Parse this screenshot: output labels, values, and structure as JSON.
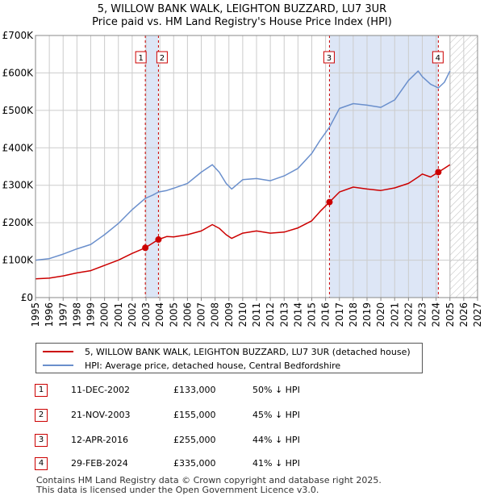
{
  "title_line1": "5, WILLOW BANK WALK, LEIGHTON BUZZARD, LU7 3UR",
  "title_line2": "Price paid vs. HM Land Registry's House Price Index (HPI)",
  "colors": {
    "property": "#cc0000",
    "hpi": "#6a8fcc",
    "shade": "#dde6f6"
  },
  "chart_data": {
    "type": "line",
    "title": "Price paid vs. HM Land Registry's House Price Index (HPI)",
    "xlim": [
      1995,
      2027
    ],
    "ylim": [
      0,
      700000
    ],
    "yticks": [
      0,
      100000,
      200000,
      300000,
      400000,
      500000,
      600000,
      700000
    ],
    "ytick_labels": [
      "£0",
      "£100K",
      "£200K",
      "£300K",
      "£400K",
      "£500K",
      "£600K",
      "£700K"
    ],
    "xticks": [
      "1995",
      "1996",
      "1997",
      "1998",
      "1999",
      "2000",
      "2001",
      "2002",
      "2003",
      "2004",
      "2005",
      "2006",
      "2007",
      "2008",
      "2009",
      "2010",
      "2011",
      "2012",
      "2013",
      "2014",
      "2015",
      "2016",
      "2017",
      "2018",
      "2019",
      "2020",
      "2021",
      "2022",
      "2023",
      "2024",
      "2025",
      "2026",
      "2027"
    ],
    "data_end": 2025.0,
    "series": [
      {
        "name": "5, WILLOW BANK WALK, LEIGHTON BUZZARD, LU7 3UR (detached house)",
        "x": [
          1995.0,
          1996.0,
          1997.0,
          1998.0,
          1999.0,
          2000.0,
          2001.0,
          2002.0,
          2002.95,
          2003.5,
          2003.9,
          2004.5,
          2005.0,
          2006.0,
          2007.0,
          2007.8,
          2008.3,
          2008.8,
          2009.2,
          2010.0,
          2011.0,
          2012.0,
          2013.0,
          2014.0,
          2015.0,
          2015.6,
          2016.28,
          2017.0,
          2018.0,
          2019.0,
          2020.0,
          2021.0,
          2022.0,
          2022.7,
          2023.0,
          2023.6,
          2024.16,
          2024.6,
          2025.0
        ],
        "y": [
          50000,
          52000,
          58000,
          66000,
          72000,
          86000,
          100000,
          118000,
          133000,
          146000,
          155000,
          163000,
          162000,
          168000,
          178000,
          195000,
          185000,
          168000,
          158000,
          172000,
          178000,
          172000,
          175000,
          186000,
          205000,
          230000,
          255000,
          282000,
          295000,
          290000,
          286000,
          293000,
          305000,
          322000,
          330000,
          322000,
          335000,
          345000,
          355000
        ]
      },
      {
        "name": "HPI: Average price, detached house, Central Bedfordshire",
        "x": [
          1995.0,
          1996.0,
          1997.0,
          1998.0,
          1999.0,
          2000.0,
          2001.0,
          2002.0,
          2002.95,
          2003.5,
          2003.9,
          2004.5,
          2005.0,
          2006.0,
          2007.0,
          2007.8,
          2008.3,
          2008.8,
          2009.2,
          2010.0,
          2011.0,
          2012.0,
          2013.0,
          2014.0,
          2015.0,
          2015.6,
          2016.28,
          2017.0,
          2018.0,
          2019.0,
          2020.0,
          2021.0,
          2022.0,
          2022.7,
          2023.0,
          2023.6,
          2024.16,
          2024.6,
          2025.0
        ],
        "y": [
          100000,
          104000,
          116000,
          130000,
          142000,
          168000,
          198000,
          235000,
          265000,
          274000,
          282000,
          286000,
          292000,
          305000,
          335000,
          355000,
          335000,
          305000,
          290000,
          315000,
          318000,
          312000,
          325000,
          345000,
          385000,
          420000,
          455000,
          505000,
          518000,
          514000,
          508000,
          528000,
          580000,
          605000,
          590000,
          570000,
          560000,
          575000,
          605000
        ]
      }
    ],
    "sales": [
      {
        "label": "1",
        "x": 2002.95,
        "price": 133000
      },
      {
        "label": "2",
        "x": 2003.9,
        "price": 155000
      },
      {
        "label": "3",
        "x": 2016.28,
        "price": 255000
      },
      {
        "label": "4",
        "x": 2024.16,
        "price": 335000
      }
    ]
  },
  "legend": {
    "property_label": "5, WILLOW BANK WALK, LEIGHTON BUZZARD, LU7 3UR (detached house)",
    "hpi_label": "HPI: Average price, detached house, Central Bedfordshire"
  },
  "transactions": [
    {
      "num": "1",
      "date": "11-DEC-2002",
      "price": "£133,000",
      "hpi": "50% ↓ HPI"
    },
    {
      "num": "2",
      "date": "21-NOV-2003",
      "price": "£155,000",
      "hpi": "45% ↓ HPI"
    },
    {
      "num": "3",
      "date": "12-APR-2016",
      "price": "£255,000",
      "hpi": "44% ↓ HPI"
    },
    {
      "num": "4",
      "date": "29-FEB-2024",
      "price": "£335,000",
      "hpi": "41% ↓ HPI"
    }
  ],
  "footer_line1": "Contains HM Land Registry data © Crown copyright and database right 2025.",
  "footer_line2": "This data is licensed under the Open Government Licence v3.0."
}
